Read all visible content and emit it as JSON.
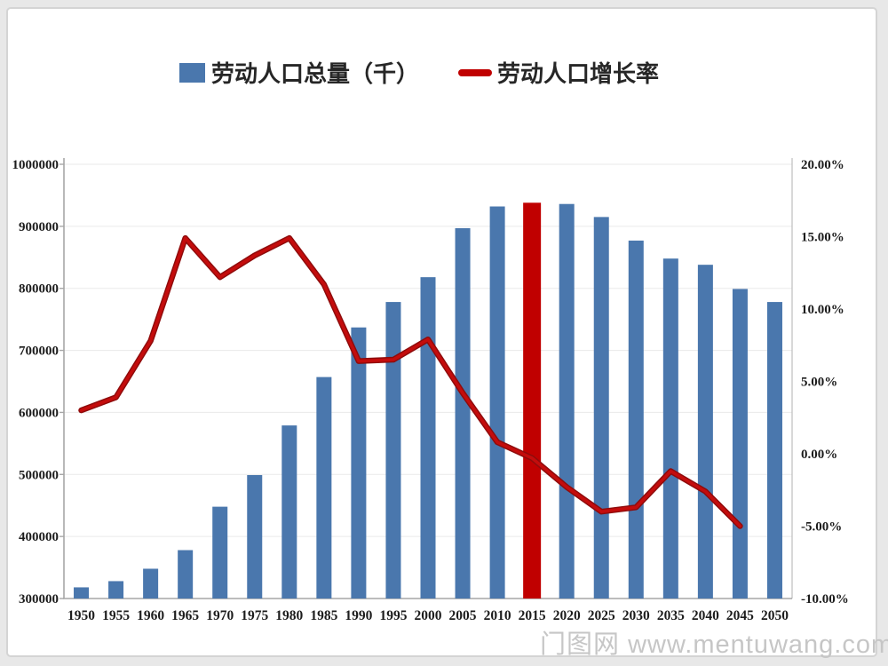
{
  "legend": {
    "items": [
      {
        "label": "劳动人口总量（千）",
        "swatch": "bar-square",
        "color": "#4a77ad"
      },
      {
        "label": "劳动人口增长率",
        "swatch": "line-dash",
        "color": "#c00000"
      }
    ]
  },
  "watermark": {
    "site_name": "门图网",
    "site_url": "www.mentuwang.com"
  },
  "chart_data": {
    "type": "bar",
    "subtype": "combo-bar-line",
    "categories": [
      "1950",
      "1955",
      "1960",
      "1965",
      "1970",
      "1975",
      "1980",
      "1985",
      "1990",
      "1995",
      "2000",
      "2005",
      "2010",
      "2015",
      "2020",
      "2025",
      "2030",
      "2035",
      "2040",
      "2045",
      "2050"
    ],
    "series": [
      {
        "name": "劳动人口总量（千）",
        "type": "bar",
        "axis": "left",
        "color": "#4a77ad",
        "highlight_category": "2015",
        "highlight_color": "#c00000",
        "values": [
          318000,
          328000,
          348000,
          378000,
          448000,
          499000,
          579000,
          657000,
          737000,
          778000,
          818000,
          897000,
          932000,
          938000,
          936000,
          915000,
          877000,
          848000,
          838000,
          799000,
          778000
        ]
      },
      {
        "name": "劳动人口增长率",
        "type": "line",
        "axis": "right",
        "color": "#c40c0c",
        "unit": "%",
        "values": [
          3.0,
          3.9,
          7.8,
          14.9,
          12.2,
          13.7,
          14.9,
          11.7,
          6.4,
          6.5,
          7.9,
          4.2,
          0.8,
          -0.3,
          -2.3,
          -4.0,
          -3.7,
          -1.2,
          -2.6,
          -5.0,
          null
        ]
      }
    ],
    "left_axis": {
      "min": 300000,
      "max": 1000000,
      "tick_step": 100000,
      "tick_labels": [
        "1000000",
        "900000",
        "800000",
        "700000",
        "600000",
        "500000",
        "400000",
        "300000"
      ]
    },
    "right_axis": {
      "min": -10,
      "max": 20,
      "tick_step": 5,
      "tick_labels": [
        "20.00%",
        "15.00%",
        "10.00%",
        "5.00%",
        "0.00%",
        "-5.00%",
        "-10.00%"
      ]
    },
    "grid": true,
    "legend_position": "top"
  }
}
